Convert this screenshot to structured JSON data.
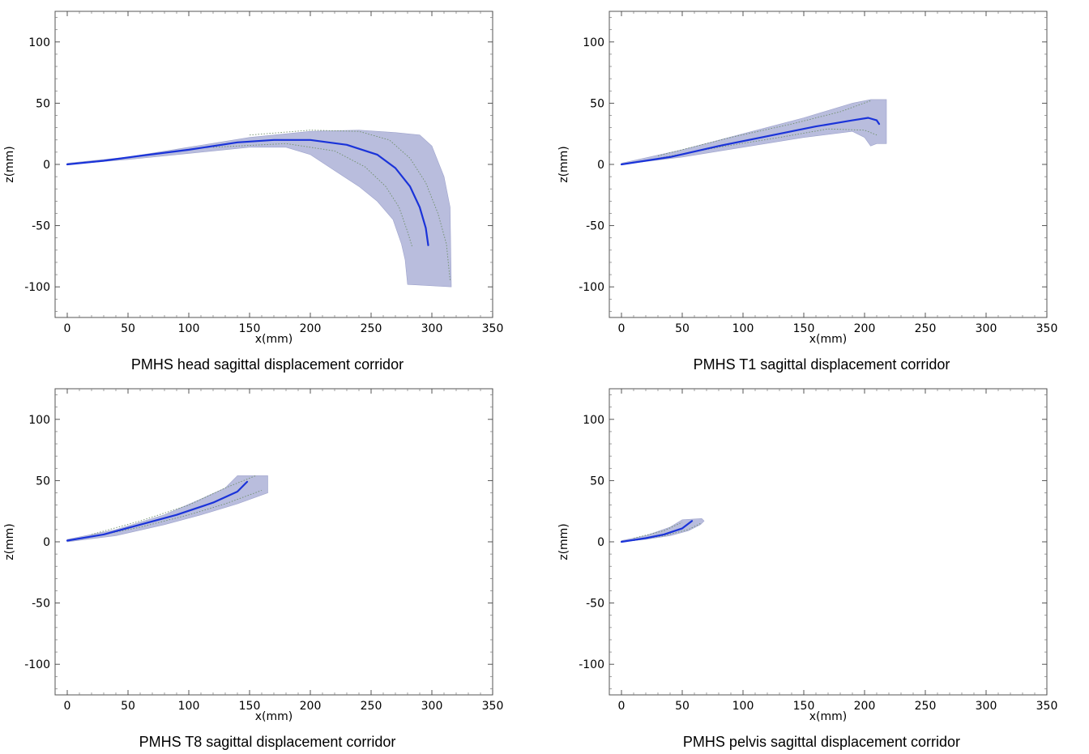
{
  "chart_data": [
    {
      "type": "area",
      "title": "PMHS head sagittal displacement corridor",
      "xlabel": "x(mm)",
      "ylabel": "z(mm)",
      "xlim": [
        -10,
        350
      ],
      "ylim": [
        -125,
        125
      ],
      "xticks": [
        0,
        50,
        100,
        150,
        200,
        250,
        300,
        350
      ],
      "yticks": [
        -100,
        -50,
        0,
        50,
        100
      ],
      "grid": false,
      "colors": {
        "corridor": "#b9bddd",
        "mean": "#1a33d9",
        "bound": "#6f8f6a"
      },
      "corridor": {
        "upper": [
          [
            0,
            1
          ],
          [
            50,
            6
          ],
          [
            100,
            14
          ],
          [
            150,
            22
          ],
          [
            200,
            27
          ],
          [
            240,
            28
          ],
          [
            270,
            26
          ],
          [
            290,
            24
          ],
          [
            300,
            15
          ],
          [
            310,
            -10
          ],
          [
            315,
            -35
          ],
          [
            316,
            -100
          ]
        ],
        "lower": [
          [
            0,
            0
          ],
          [
            50,
            4
          ],
          [
            100,
            9
          ],
          [
            150,
            14
          ],
          [
            180,
            14
          ],
          [
            200,
            8
          ],
          [
            220,
            -5
          ],
          [
            240,
            -18
          ],
          [
            255,
            -30
          ],
          [
            268,
            -45
          ],
          [
            275,
            -65
          ],
          [
            278,
            -78
          ],
          [
            280,
            -98
          ]
        ]
      },
      "series": [
        {
          "values": [
            [
              0,
              0
            ],
            [
              30,
              3
            ],
            [
              60,
              7
            ],
            [
              100,
              12
            ],
            [
              140,
              18
            ],
            [
              170,
              20
            ],
            [
              200,
              20
            ],
            [
              230,
              16
            ],
            [
              255,
              8
            ],
            [
              270,
              -3
            ],
            [
              282,
              -18
            ],
            [
              290,
              -35
            ],
            [
              295,
              -52
            ],
            [
              297,
              -66
            ]
          ]
        }
      ],
      "bounds": [
        [
          [
            120,
            14
          ],
          [
            180,
            17
          ],
          [
            220,
            11
          ],
          [
            245,
            -2
          ],
          [
            262,
            -18
          ],
          [
            273,
            -35
          ],
          [
            280,
            -55
          ],
          [
            284,
            -68
          ]
        ],
        [
          [
            150,
            24
          ],
          [
            200,
            28
          ],
          [
            240,
            27
          ],
          [
            265,
            20
          ],
          [
            282,
            5
          ],
          [
            295,
            -15
          ],
          [
            305,
            -40
          ],
          [
            312,
            -65
          ],
          [
            315,
            -95
          ]
        ]
      ]
    },
    {
      "type": "area",
      "title": "PMHS T1 sagittal displacement corridor",
      "xlabel": "x(mm)",
      "ylabel": "z(mm)",
      "xlim": [
        -10,
        350
      ],
      "ylim": [
        -125,
        125
      ],
      "xticks": [
        0,
        50,
        100,
        150,
        200,
        250,
        300,
        350
      ],
      "yticks": [
        -100,
        -50,
        0,
        50,
        100
      ],
      "grid": false,
      "colors": {
        "corridor": "#b9bddd",
        "mean": "#1a33d9",
        "bound": "#6f8f6a"
      },
      "corridor": {
        "upper": [
          [
            0,
            1
          ],
          [
            50,
            12
          ],
          [
            100,
            25
          ],
          [
            150,
            38
          ],
          [
            190,
            50
          ],
          [
            205,
            53
          ],
          [
            218,
            53
          ],
          [
            218,
            17
          ]
        ],
        "lower": [
          [
            0,
            0
          ],
          [
            50,
            6
          ],
          [
            100,
            14
          ],
          [
            150,
            22
          ],
          [
            190,
            27
          ],
          [
            200,
            22
          ],
          [
            205,
            15
          ],
          [
            210,
            17
          ]
        ]
      },
      "series": [
        {
          "values": [
            [
              0,
              0
            ],
            [
              40,
              6
            ],
            [
              80,
              15
            ],
            [
              120,
              23
            ],
            [
              160,
              31
            ],
            [
              190,
              36
            ],
            [
              203,
              38
            ],
            [
              210,
              36
            ],
            [
              212,
              33
            ]
          ]
        }
      ],
      "bounds": [
        [
          [
            30,
            5
          ],
          [
            80,
            14
          ],
          [
            130,
            22
          ],
          [
            170,
            29
          ],
          [
            200,
            28
          ],
          [
            210,
            24
          ]
        ],
        [
          [
            30,
            7
          ],
          [
            90,
            22
          ],
          [
            140,
            33
          ],
          [
            180,
            43
          ],
          [
            205,
            52
          ]
        ]
      ]
    },
    {
      "type": "area",
      "title": "PMHS T8 sagittal displacement corridor",
      "xlabel": "x(mm)",
      "ylabel": "z(mm)",
      "xlim": [
        -10,
        350
      ],
      "ylim": [
        -125,
        125
      ],
      "xticks": [
        0,
        50,
        100,
        150,
        200,
        250,
        300,
        350
      ],
      "yticks": [
        -100,
        -50,
        0,
        50,
        100
      ],
      "grid": false,
      "colors": {
        "corridor": "#b9bddd",
        "mean": "#1a33d9",
        "bound": "#6f8f6a"
      },
      "corridor": {
        "upper": [
          [
            0,
            2
          ],
          [
            40,
            10
          ],
          [
            80,
            22
          ],
          [
            110,
            35
          ],
          [
            130,
            44
          ],
          [
            140,
            54
          ],
          [
            165,
            54
          ]
        ],
        "lower": [
          [
            0,
            0
          ],
          [
            40,
            5
          ],
          [
            80,
            14
          ],
          [
            110,
            22
          ],
          [
            140,
            31
          ],
          [
            165,
            40
          ]
        ]
      },
      "series": [
        {
          "values": [
            [
              0,
              1
            ],
            [
              30,
              6
            ],
            [
              60,
              14
            ],
            [
              90,
              22
            ],
            [
              120,
              32
            ],
            [
              140,
              41
            ],
            [
              148,
              49
            ]
          ]
        }
      ],
      "bounds": [
        [
          [
            20,
            4
          ],
          [
            60,
            12
          ],
          [
            100,
            22
          ],
          [
            130,
            31
          ],
          [
            160,
            42
          ]
        ],
        [
          [
            20,
            6
          ],
          [
            60,
            17
          ],
          [
            100,
            30
          ],
          [
            130,
            44
          ],
          [
            155,
            54
          ]
        ]
      ]
    },
    {
      "type": "area",
      "title": "PMHS pelvis sagittal displacement corridor",
      "xlabel": "x(mm)",
      "ylabel": "z(mm)",
      "xlim": [
        -10,
        350
      ],
      "ylim": [
        -125,
        125
      ],
      "xticks": [
        0,
        50,
        100,
        150,
        200,
        250,
        300,
        350
      ],
      "yticks": [
        -100,
        -50,
        0,
        50,
        100
      ],
      "grid": false,
      "colors": {
        "corridor": "#b9bddd",
        "mean": "#1a33d9",
        "bound": "#6f8f6a"
      },
      "corridor": {
        "upper": [
          [
            0,
            1
          ],
          [
            20,
            5
          ],
          [
            40,
            12
          ],
          [
            50,
            18
          ],
          [
            66,
            19
          ],
          [
            68,
            17
          ]
        ],
        "lower": [
          [
            0,
            0
          ],
          [
            20,
            2
          ],
          [
            40,
            5
          ],
          [
            55,
            9
          ],
          [
            65,
            14
          ]
        ]
      },
      "series": [
        {
          "values": [
            [
              0,
              0
            ],
            [
              20,
              3
            ],
            [
              35,
              6
            ],
            [
              50,
              11
            ],
            [
              58,
              17
            ]
          ]
        }
      ],
      "bounds": [
        [
          [
            10,
            1
          ],
          [
            35,
            5
          ],
          [
            55,
            10
          ],
          [
            65,
            15
          ]
        ],
        [
          [
            10,
            3
          ],
          [
            35,
            9
          ],
          [
            50,
            16
          ]
        ]
      ]
    }
  ]
}
